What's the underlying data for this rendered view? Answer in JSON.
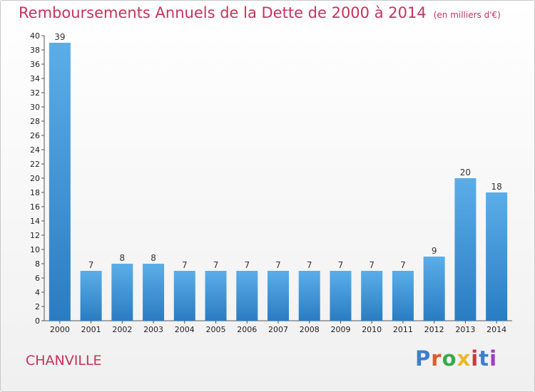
{
  "header": {
    "title": "Remboursements Annuels de la Dette de 2000 à 2014",
    "subtitle": "(en milliers d'€)"
  },
  "footer": {
    "city": "CHANVILLE",
    "logo": "Proxiti"
  },
  "colors": {
    "title": "#c8325a",
    "bar_light": "#5aaee8",
    "bar_dark": "#2a7cc2",
    "logo_letters": [
      "#3b7fd1",
      "#e05a28",
      "#3aa84a",
      "#e8b92a",
      "#d8323c",
      "#3b7fd1",
      "#9b3ec8"
    ]
  },
  "chart_data": {
    "type": "bar",
    "title": "Remboursements Annuels de la Dette de 2000 à 2014",
    "subtitle": "(en milliers d'€)",
    "categories": [
      "2000",
      "2001",
      "2002",
      "2003",
      "2004",
      "2005",
      "2006",
      "2007",
      "2008",
      "2009",
      "2010",
      "2011",
      "2012",
      "2013",
      "2014"
    ],
    "values": [
      39,
      7,
      8,
      8,
      7,
      7,
      7,
      7,
      7,
      7,
      7,
      7,
      9,
      20,
      18
    ],
    "ylim": [
      0,
      40
    ],
    "yticks": [
      0,
      2,
      4,
      6,
      8,
      10,
      12,
      14,
      16,
      18,
      20,
      22,
      24,
      26,
      28,
      30,
      32,
      34,
      36,
      38,
      40
    ],
    "grid": false
  }
}
